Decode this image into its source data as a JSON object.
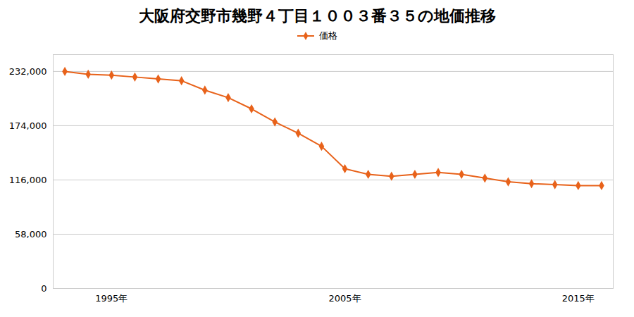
{
  "chart_data": {
    "type": "line",
    "title": "大阪府交野市幾野４丁目１００３番３５の地価推移",
    "x": [
      1993,
      1994,
      1995,
      1996,
      1997,
      1998,
      1999,
      2000,
      2001,
      2002,
      2003,
      2004,
      2005,
      2006,
      2007,
      2008,
      2009,
      2010,
      2011,
      2012,
      2013,
      2014,
      2015,
      2016
    ],
    "series": [
      {
        "name": "価格",
        "color": "#E8621A",
        "marker": "diamond",
        "values": [
          232000,
          229000,
          228000,
          226000,
          224000,
          222000,
          212000,
          204000,
          192000,
          178000,
          166000,
          152000,
          128000,
          122000,
          120000,
          122000,
          124000,
          122000,
          118000,
          114000,
          112000,
          111000,
          110000,
          110000
        ]
      }
    ],
    "xlim": [
      1992.5,
      2016.5
    ],
    "xticks": [
      {
        "value": 1995,
        "label": "1995年"
      },
      {
        "value": 2005,
        "label": "2005年"
      },
      {
        "value": 2015,
        "label": "2015年"
      }
    ],
    "ylim": [
      0,
      250000
    ],
    "yticks": [
      0,
      {
        "value": 58000,
        "label": "58,000"
      },
      {
        "value": 116000,
        "label": "116,000"
      },
      {
        "value": 174000,
        "label": "174,000"
      },
      {
        "value": 232000,
        "label": "232,000"
      }
    ],
    "grid": true,
    "legend": "top"
  }
}
